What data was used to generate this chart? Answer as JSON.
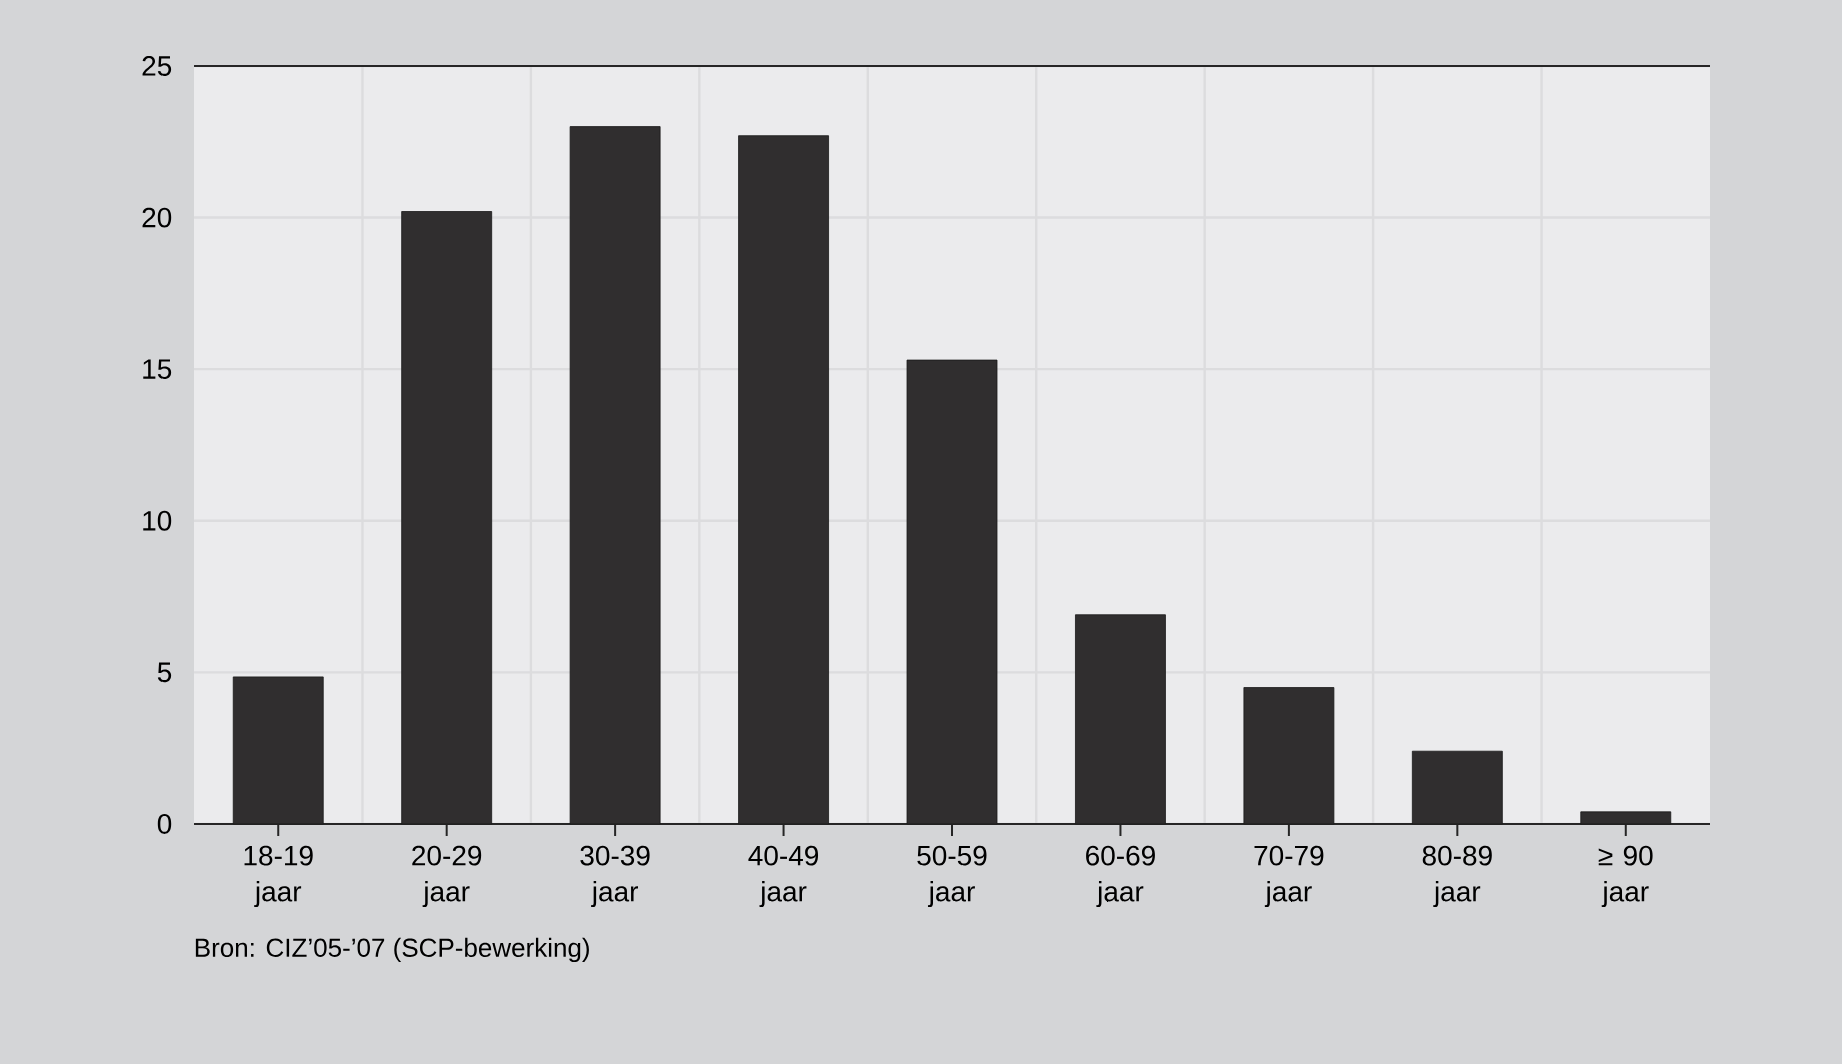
{
  "chart_data": {
    "type": "bar",
    "categories": [
      "18-19 jaar",
      "20-29 jaar",
      "30-39 jaar",
      "40-49 jaar",
      "50-59 jaar",
      "60-69 jaar",
      "70-79 jaar",
      "80-89 jaar",
      "≥ 90 jaar"
    ],
    "values": [
      4.85,
      20.2,
      23.0,
      22.7,
      15.3,
      6.9,
      4.5,
      2.4,
      0.4
    ],
    "color": "#302e2f",
    "ylim": [
      0,
      25
    ],
    "yticks": [
      0,
      5,
      10,
      15,
      20,
      25
    ],
    "grid": true,
    "annotations": [
      "Bron: CIZ’05-’07 (SCP-bewerking)"
    ]
  }
}
